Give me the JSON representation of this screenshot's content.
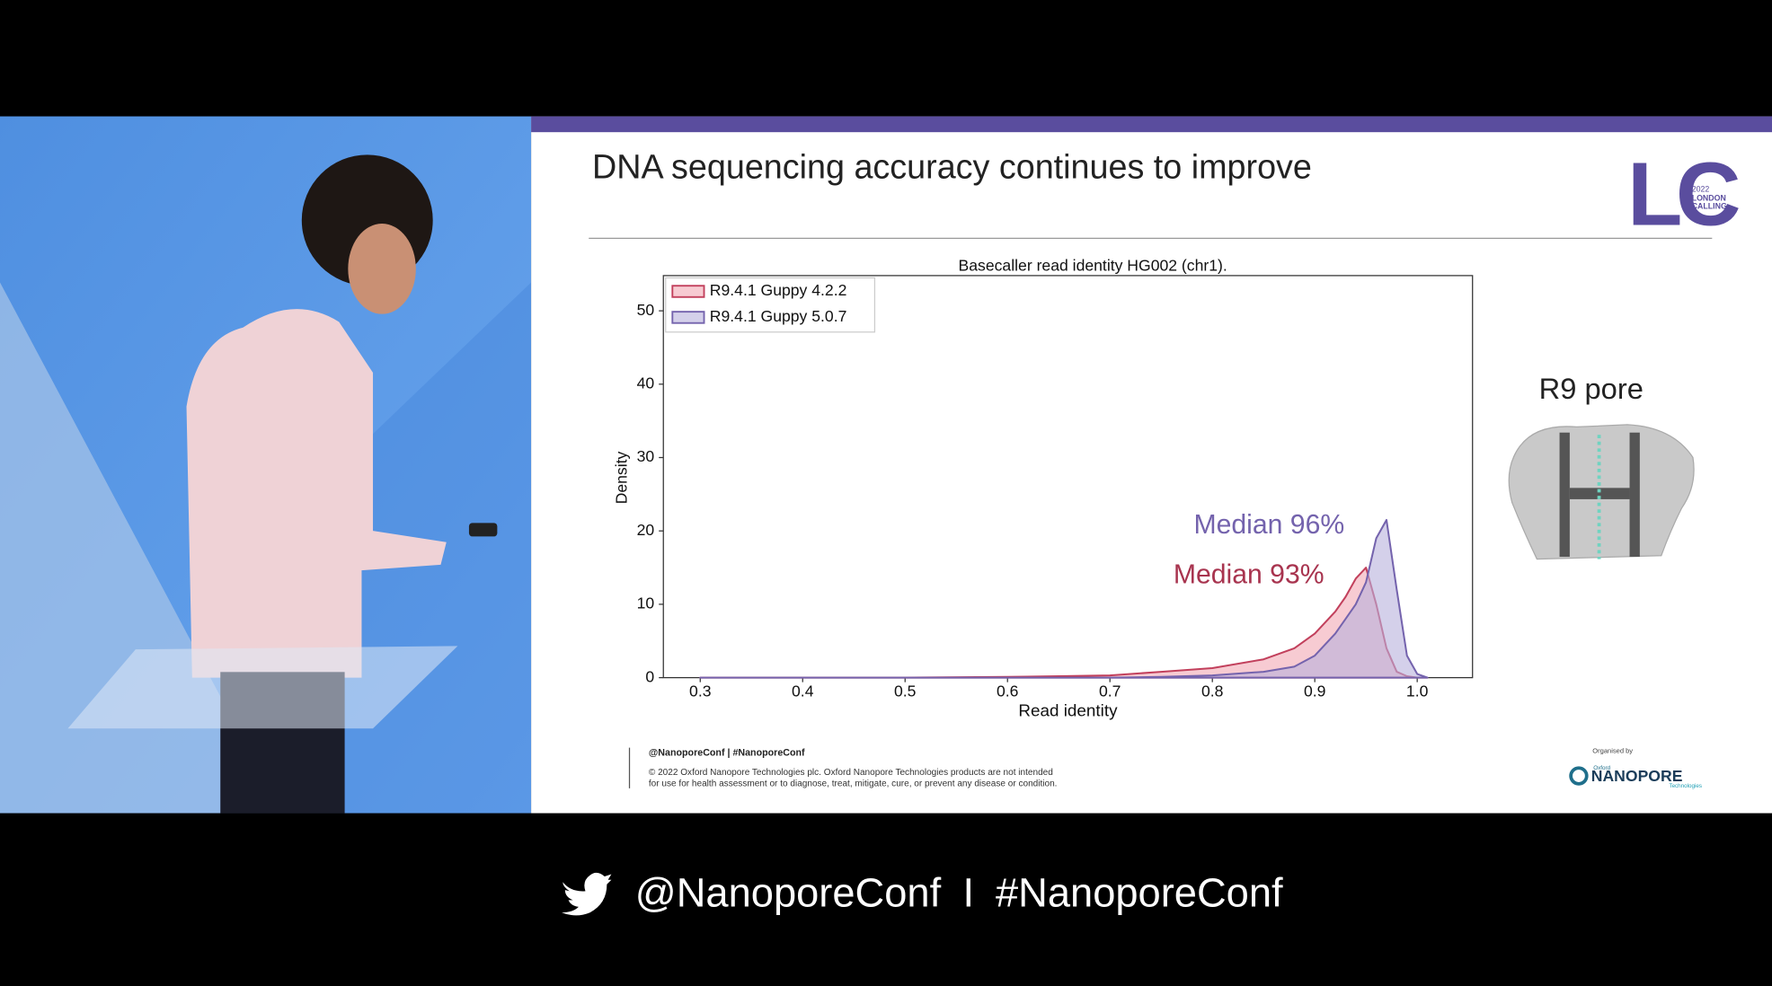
{
  "slide": {
    "title": "DNA sequencing accuracy continues to improve",
    "logo_text": "LC",
    "logo_year": "2022",
    "logo_line1": "LONDON",
    "logo_line2": "CALLING",
    "side_label": "R9 pore",
    "footer_handles": "@NanoporeConf | #NanoporeConf",
    "footer_legal_1": "© 2022 Oxford Nanopore Technologies plc. Oxford Nanopore Technologies products are not intended",
    "footer_legal_2": "for use for health assessment or to diagnose, treat, mitigate, cure, or prevent any disease or condition.",
    "organiser_label": "Organised by",
    "organiser_small": "Oxford",
    "organiser_name": "NANOPORE",
    "organiser_sub": "Technologies"
  },
  "banner": {
    "handle": "@NanoporeConf",
    "separator": "I",
    "hashtag": "#NanoporeConf"
  },
  "chart_data": {
    "type": "area",
    "title": "Basecaller read identity HG002 (chr1).",
    "x_label": "Read identity",
    "y_label": "Density",
    "x": [
      0.3,
      0.4,
      0.5,
      0.6,
      0.65,
      0.7,
      0.75,
      0.8,
      0.85,
      0.88,
      0.9,
      0.92,
      0.93,
      0.94,
      0.95,
      0.96,
      0.97,
      0.98,
      0.99,
      1.0,
      1.01
    ],
    "series": [
      {
        "name": "R9.4.1 Guppy 4.2.2",
        "color": "#c2405c",
        "fill": "#f2a9b4",
        "values": [
          0,
          0,
          0,
          0.1,
          0.2,
          0.3,
          0.8,
          1.3,
          2.5,
          4,
          6,
          9,
          11,
          13.5,
          15,
          10,
          4,
          0.8,
          0.2,
          0,
          0
        ]
      },
      {
        "name": "R9.4.1 Guppy 5.0.7",
        "color": "#7463ad",
        "fill": "#b7b0dc",
        "values": [
          0,
          0,
          0,
          0,
          0,
          0,
          0.1,
          0.3,
          0.8,
          1.5,
          3,
          6,
          8,
          10,
          13,
          19,
          21.5,
          12,
          3,
          0.5,
          0
        ]
      }
    ],
    "annotations": [
      {
        "text": "Median 96%",
        "color": "#7463ad"
      },
      {
        "text": "Median 93%",
        "color": "#a8344f"
      }
    ],
    "xlim": [
      0.264,
      1.054
    ],
    "ylim": [
      0,
      54.8
    ],
    "xticks": [
      0.3,
      0.4,
      0.5,
      0.6,
      0.7,
      0.8,
      0.9,
      {
        "value": 1,
        "label": "1.0"
      }
    ],
    "yticks": [
      0,
      10,
      20,
      30,
      40,
      50
    ],
    "grid": false,
    "legend": "upper-left"
  }
}
